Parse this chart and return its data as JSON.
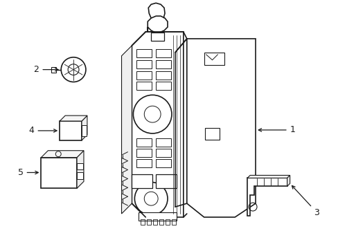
{
  "background_color": "#ffffff",
  "line_color": "#1a1a1a",
  "line_width": 1.2,
  "label_fontsize": 9,
  "figsize": [
    4.89,
    3.6
  ],
  "dpi": 100
}
